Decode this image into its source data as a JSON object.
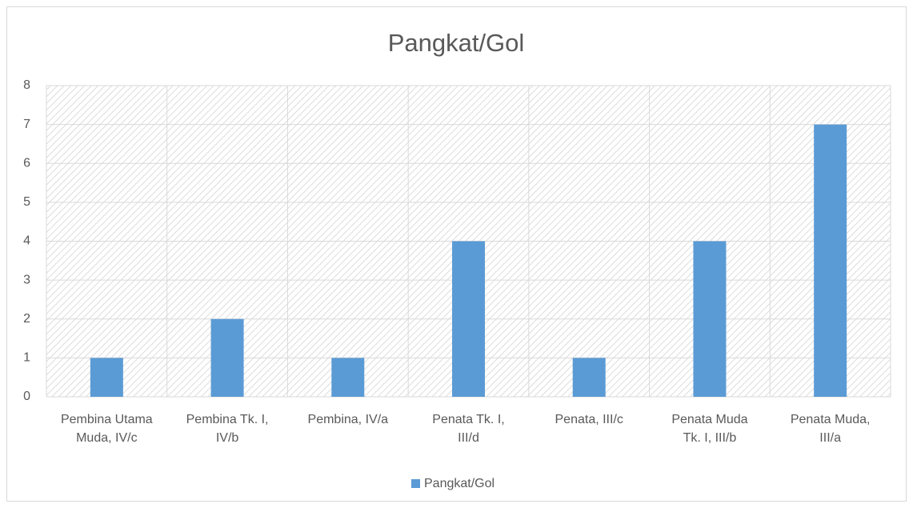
{
  "chart_data": {
    "type": "bar",
    "title": "Pangkat/Gol",
    "categories": [
      "Pembina Utama Muda, IV/c",
      "Pembina Tk. I, IV/b",
      "Pembina, IV/a",
      "Penata Tk. I, III/d",
      "Penata, III/c",
      "Penata Muda Tk. I, III/b",
      "Penata Muda, III/a"
    ],
    "series": [
      {
        "name": "Pangkat/Gol",
        "color": "#5b9bd5",
        "values": [
          1,
          2,
          1,
          4,
          1,
          4,
          7
        ]
      }
    ],
    "ylim": [
      0,
      8
    ],
    "yticks": [
      0,
      1,
      2,
      3,
      4,
      5,
      6,
      7,
      8
    ],
    "grid": true,
    "legend": "bottom"
  }
}
